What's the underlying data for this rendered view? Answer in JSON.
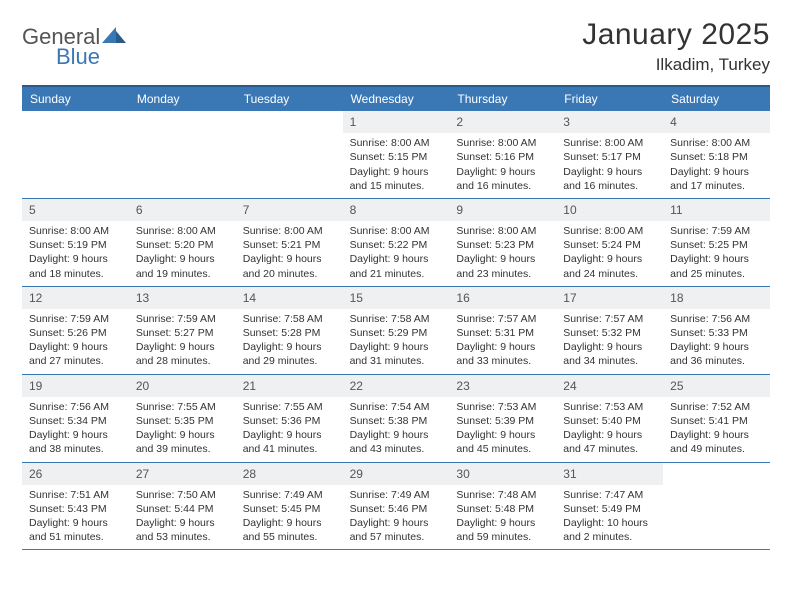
{
  "logo": {
    "word1": "General",
    "word2": "Blue",
    "icon_color": "#3a78b5"
  },
  "title": "January 2025",
  "location": "Ilkadim, Turkey",
  "header_bg": "#3a78b5",
  "day_names": [
    "Sunday",
    "Monday",
    "Tuesday",
    "Wednesday",
    "Thursday",
    "Friday",
    "Saturday"
  ],
  "weeks": [
    [
      {
        "n": "",
        "sr": "",
        "ss": "",
        "d1": "",
        "d2": "",
        "empty": true
      },
      {
        "n": "",
        "sr": "",
        "ss": "",
        "d1": "",
        "d2": "",
        "empty": true
      },
      {
        "n": "",
        "sr": "",
        "ss": "",
        "d1": "",
        "d2": "",
        "empty": true
      },
      {
        "n": "1",
        "sr": "Sunrise: 8:00 AM",
        "ss": "Sunset: 5:15 PM",
        "d1": "Daylight: 9 hours",
        "d2": "and 15 minutes."
      },
      {
        "n": "2",
        "sr": "Sunrise: 8:00 AM",
        "ss": "Sunset: 5:16 PM",
        "d1": "Daylight: 9 hours",
        "d2": "and 16 minutes."
      },
      {
        "n": "3",
        "sr": "Sunrise: 8:00 AM",
        "ss": "Sunset: 5:17 PM",
        "d1": "Daylight: 9 hours",
        "d2": "and 16 minutes."
      },
      {
        "n": "4",
        "sr": "Sunrise: 8:00 AM",
        "ss": "Sunset: 5:18 PM",
        "d1": "Daylight: 9 hours",
        "d2": "and 17 minutes."
      }
    ],
    [
      {
        "n": "5",
        "sr": "Sunrise: 8:00 AM",
        "ss": "Sunset: 5:19 PM",
        "d1": "Daylight: 9 hours",
        "d2": "and 18 minutes."
      },
      {
        "n": "6",
        "sr": "Sunrise: 8:00 AM",
        "ss": "Sunset: 5:20 PM",
        "d1": "Daylight: 9 hours",
        "d2": "and 19 minutes."
      },
      {
        "n": "7",
        "sr": "Sunrise: 8:00 AM",
        "ss": "Sunset: 5:21 PM",
        "d1": "Daylight: 9 hours",
        "d2": "and 20 minutes."
      },
      {
        "n": "8",
        "sr": "Sunrise: 8:00 AM",
        "ss": "Sunset: 5:22 PM",
        "d1": "Daylight: 9 hours",
        "d2": "and 21 minutes."
      },
      {
        "n": "9",
        "sr": "Sunrise: 8:00 AM",
        "ss": "Sunset: 5:23 PM",
        "d1": "Daylight: 9 hours",
        "d2": "and 23 minutes."
      },
      {
        "n": "10",
        "sr": "Sunrise: 8:00 AM",
        "ss": "Sunset: 5:24 PM",
        "d1": "Daylight: 9 hours",
        "d2": "and 24 minutes."
      },
      {
        "n": "11",
        "sr": "Sunrise: 7:59 AM",
        "ss": "Sunset: 5:25 PM",
        "d1": "Daylight: 9 hours",
        "d2": "and 25 minutes."
      }
    ],
    [
      {
        "n": "12",
        "sr": "Sunrise: 7:59 AM",
        "ss": "Sunset: 5:26 PM",
        "d1": "Daylight: 9 hours",
        "d2": "and 27 minutes."
      },
      {
        "n": "13",
        "sr": "Sunrise: 7:59 AM",
        "ss": "Sunset: 5:27 PM",
        "d1": "Daylight: 9 hours",
        "d2": "and 28 minutes."
      },
      {
        "n": "14",
        "sr": "Sunrise: 7:58 AM",
        "ss": "Sunset: 5:28 PM",
        "d1": "Daylight: 9 hours",
        "d2": "and 29 minutes."
      },
      {
        "n": "15",
        "sr": "Sunrise: 7:58 AM",
        "ss": "Sunset: 5:29 PM",
        "d1": "Daylight: 9 hours",
        "d2": "and 31 minutes."
      },
      {
        "n": "16",
        "sr": "Sunrise: 7:57 AM",
        "ss": "Sunset: 5:31 PM",
        "d1": "Daylight: 9 hours",
        "d2": "and 33 minutes."
      },
      {
        "n": "17",
        "sr": "Sunrise: 7:57 AM",
        "ss": "Sunset: 5:32 PM",
        "d1": "Daylight: 9 hours",
        "d2": "and 34 minutes."
      },
      {
        "n": "18",
        "sr": "Sunrise: 7:56 AM",
        "ss": "Sunset: 5:33 PM",
        "d1": "Daylight: 9 hours",
        "d2": "and 36 minutes."
      }
    ],
    [
      {
        "n": "19",
        "sr": "Sunrise: 7:56 AM",
        "ss": "Sunset: 5:34 PM",
        "d1": "Daylight: 9 hours",
        "d2": "and 38 minutes."
      },
      {
        "n": "20",
        "sr": "Sunrise: 7:55 AM",
        "ss": "Sunset: 5:35 PM",
        "d1": "Daylight: 9 hours",
        "d2": "and 39 minutes."
      },
      {
        "n": "21",
        "sr": "Sunrise: 7:55 AM",
        "ss": "Sunset: 5:36 PM",
        "d1": "Daylight: 9 hours",
        "d2": "and 41 minutes."
      },
      {
        "n": "22",
        "sr": "Sunrise: 7:54 AM",
        "ss": "Sunset: 5:38 PM",
        "d1": "Daylight: 9 hours",
        "d2": "and 43 minutes."
      },
      {
        "n": "23",
        "sr": "Sunrise: 7:53 AM",
        "ss": "Sunset: 5:39 PM",
        "d1": "Daylight: 9 hours",
        "d2": "and 45 minutes."
      },
      {
        "n": "24",
        "sr": "Sunrise: 7:53 AM",
        "ss": "Sunset: 5:40 PM",
        "d1": "Daylight: 9 hours",
        "d2": "and 47 minutes."
      },
      {
        "n": "25",
        "sr": "Sunrise: 7:52 AM",
        "ss": "Sunset: 5:41 PM",
        "d1": "Daylight: 9 hours",
        "d2": "and 49 minutes."
      }
    ],
    [
      {
        "n": "26",
        "sr": "Sunrise: 7:51 AM",
        "ss": "Sunset: 5:43 PM",
        "d1": "Daylight: 9 hours",
        "d2": "and 51 minutes."
      },
      {
        "n": "27",
        "sr": "Sunrise: 7:50 AM",
        "ss": "Sunset: 5:44 PM",
        "d1": "Daylight: 9 hours",
        "d2": "and 53 minutes."
      },
      {
        "n": "28",
        "sr": "Sunrise: 7:49 AM",
        "ss": "Sunset: 5:45 PM",
        "d1": "Daylight: 9 hours",
        "d2": "and 55 minutes."
      },
      {
        "n": "29",
        "sr": "Sunrise: 7:49 AM",
        "ss": "Sunset: 5:46 PM",
        "d1": "Daylight: 9 hours",
        "d2": "and 57 minutes."
      },
      {
        "n": "30",
        "sr": "Sunrise: 7:48 AM",
        "ss": "Sunset: 5:48 PM",
        "d1": "Daylight: 9 hours",
        "d2": "and 59 minutes."
      },
      {
        "n": "31",
        "sr": "Sunrise: 7:47 AM",
        "ss": "Sunset: 5:49 PM",
        "d1": "Daylight: 10 hours",
        "d2": "and 2 minutes."
      },
      {
        "n": "",
        "sr": "",
        "ss": "",
        "d1": "",
        "d2": "",
        "empty": true
      }
    ]
  ]
}
